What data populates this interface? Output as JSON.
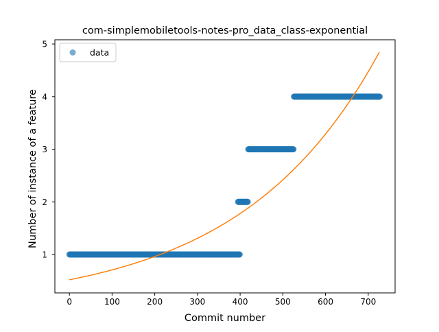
{
  "chart_data": {
    "type": "scatter",
    "title": "com-simplemobiletools-notes-pro_data_class-exponential",
    "xlabel": "Commit number",
    "ylabel": "Number of instance of a feature",
    "xlim": [
      -34,
      763
    ],
    "ylim": [
      0.27,
      5.08
    ],
    "xticks": [
      0,
      100,
      200,
      300,
      400,
      500,
      600,
      700
    ],
    "yticks": [
      1,
      2,
      3,
      4,
      5
    ],
    "grid": false,
    "legend": {
      "position": "top-left",
      "entries": [
        "data"
      ]
    },
    "colors": {
      "data": "#1f77b4",
      "fit": "#ff7f0e"
    },
    "series": [
      {
        "name": "data",
        "kind": "scatter",
        "segments": [
          {
            "x_start": 0,
            "x_end": 399,
            "y": 1
          },
          {
            "x_start": 395,
            "x_end": 418,
            "y": 2
          },
          {
            "x_start": 419,
            "x_end": 525,
            "y": 3
          },
          {
            "x_start": 526,
            "x_end": 727,
            "y": 4
          }
        ]
      },
      {
        "kind": "line",
        "model": "exponential",
        "params": {
          "a": 0.52,
          "b": 0.003074
        },
        "x_range": [
          0,
          727
        ]
      }
    ]
  }
}
